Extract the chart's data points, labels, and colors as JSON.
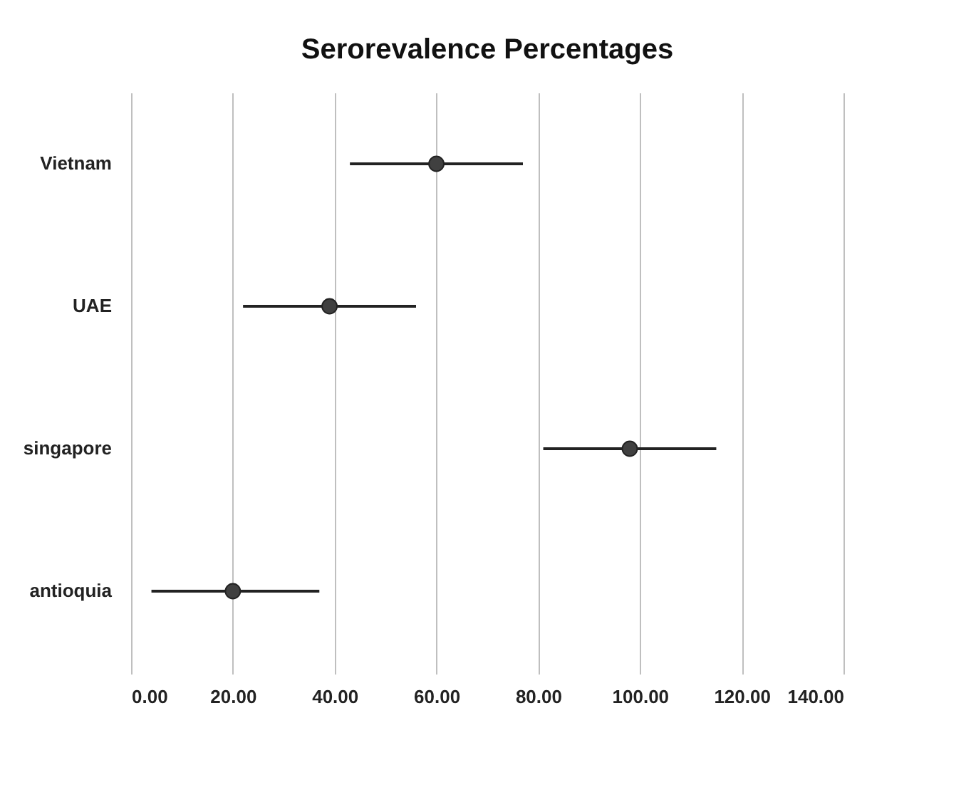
{
  "chart_data": {
    "type": "scatter",
    "title": "Serorevalence Percentages",
    "categories": [
      "Vietnam",
      "UAE",
      "singapore",
      "antioquia"
    ],
    "orientation": "horizontal",
    "series": [
      {
        "color": "#404040",
        "values": [
          60,
          39,
          98,
          20
        ],
        "errors": [
          [
            43,
            77
          ],
          [
            22,
            56
          ],
          [
            81,
            115
          ],
          [
            4,
            37
          ]
        ]
      }
    ],
    "xlim": [
      0,
      140
    ],
    "xticks": [
      {
        "value": 0,
        "label": "0.00"
      },
      {
        "value": 20,
        "label": "20.00"
      },
      {
        "value": 40,
        "label": "40.00"
      },
      {
        "value": 60,
        "label": "60.00"
      },
      {
        "value": 80,
        "label": "80.00"
      },
      {
        "value": 100,
        "label": "100.00"
      },
      {
        "value": 120,
        "label": "120.00"
      },
      {
        "value": 140,
        "label": "140.00"
      }
    ],
    "grid": "x",
    "marker": "circle"
  }
}
